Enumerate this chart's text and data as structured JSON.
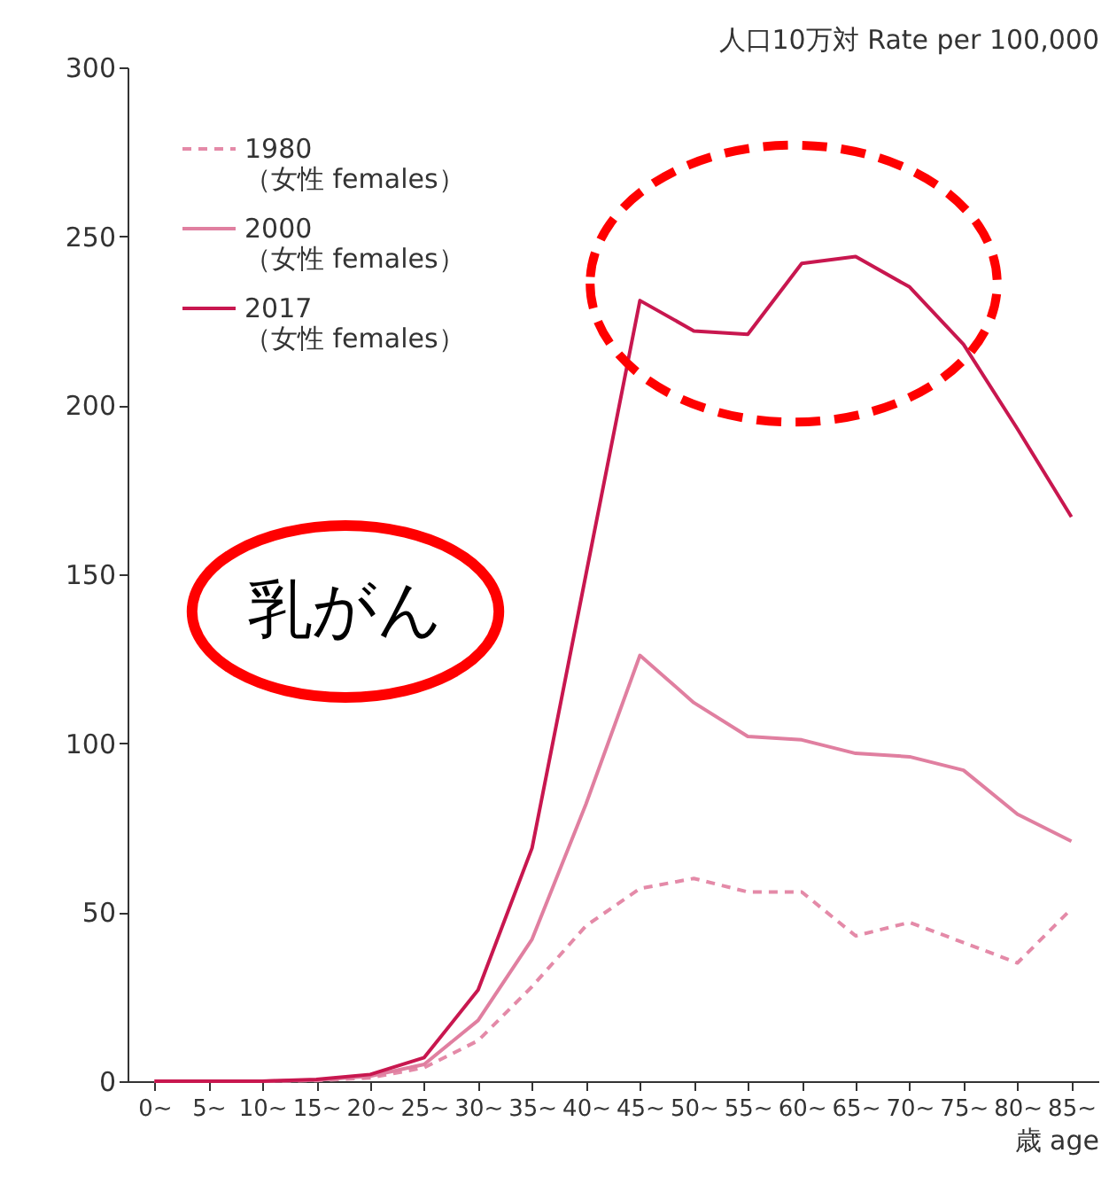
{
  "chart_data": {
    "type": "line",
    "ylabel": "人口10万対  Rate per 100,000",
    "xlabel": "歳 age",
    "categories": [
      "0~",
      "5~",
      "10~",
      "15~",
      "20~",
      "25~",
      "30~",
      "35~",
      "40~",
      "45~",
      "50~",
      "55~",
      "60~",
      "65~",
      "70~",
      "75~",
      "80~",
      "85~"
    ],
    "series": [
      {
        "name": "1980\n（女性 females）",
        "color": "#e48aa8",
        "line_style": "dashed",
        "values": [
          0,
          0,
          0,
          0.2,
          1,
          4,
          12,
          28,
          46,
          57,
          60,
          56,
          56,
          43,
          47,
          41,
          35,
          51
        ]
      },
      {
        "name": "2000\n（女性 females）",
        "color": "#e07fa0",
        "line_style": "solid",
        "values": [
          0,
          0,
          0,
          0.3,
          1.5,
          5,
          18,
          42,
          82,
          126,
          112,
          102,
          101,
          97,
          96,
          92,
          79,
          71
        ]
      },
      {
        "name": "2017\n（女性 females）",
        "color": "#c8174f",
        "line_style": "solid",
        "values": [
          0,
          0,
          0,
          0.5,
          2,
          7,
          27,
          69,
          150,
          231,
          222,
          221,
          242,
          244,
          235,
          218,
          193,
          167
        ]
      }
    ],
    "ylim": [
      0,
      300
    ],
    "yticks": [
      0,
      50,
      100,
      150,
      200,
      250,
      300
    ],
    "grid": false,
    "legend": "top left",
    "marker": "none",
    "annotations": [
      "乳がん"
    ]
  }
}
